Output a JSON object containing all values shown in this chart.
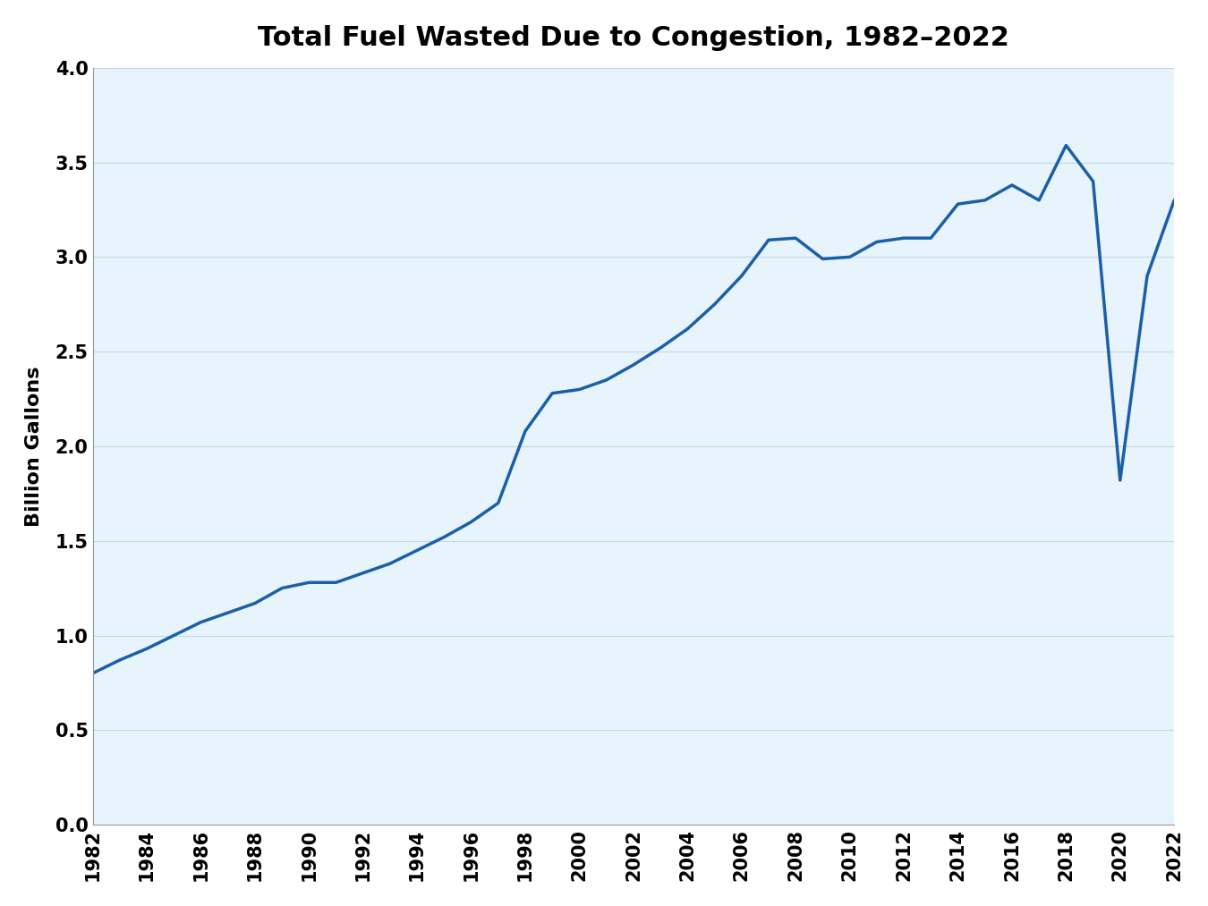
{
  "title": "Total Fuel Wasted Due to Congestion, 1982–2022",
  "ylabel": "Billion Gallons",
  "plot_bg_color": "#e8f4fb",
  "line_color": "#1a5fa8",
  "line_width": 2.5,
  "ylim": [
    0.0,
    4.0
  ],
  "yticks": [
    0.0,
    0.5,
    1.0,
    1.5,
    2.0,
    2.5,
    3.0,
    3.5,
    4.0
  ],
  "title_fontsize": 22,
  "label_fontsize": 16,
  "tick_fontsize": 15,
  "years": [
    1982,
    1983,
    1984,
    1985,
    1986,
    1987,
    1988,
    1989,
    1990,
    1991,
    1992,
    1993,
    1994,
    1995,
    1996,
    1997,
    1998,
    1999,
    2000,
    2001,
    2002,
    2003,
    2004,
    2005,
    2006,
    2007,
    2008,
    2009,
    2010,
    2011,
    2012,
    2013,
    2014,
    2015,
    2016,
    2017,
    2018,
    2019,
    2020,
    2021,
    2022
  ],
  "values": [
    0.8,
    0.87,
    0.93,
    1.0,
    1.07,
    1.12,
    1.17,
    1.25,
    1.28,
    1.28,
    1.33,
    1.38,
    1.45,
    1.52,
    1.6,
    1.7,
    2.08,
    2.28,
    2.3,
    2.35,
    2.43,
    2.52,
    2.62,
    2.75,
    2.9,
    3.09,
    3.1,
    2.99,
    3.0,
    3.08,
    3.1,
    3.1,
    3.28,
    3.3,
    3.38,
    3.3,
    3.59,
    3.4,
    1.82,
    2.9,
    3.3
  ]
}
